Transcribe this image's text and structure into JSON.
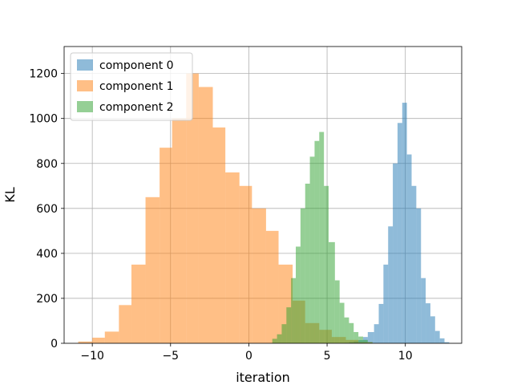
{
  "chart_data": {
    "type": "histogram",
    "title": "",
    "xlabel": "iteration",
    "ylabel": "KL",
    "xlim": [
      -11.8,
      13.6
    ],
    "ylim": [
      0,
      1320
    ],
    "xticks": [
      -10,
      -5,
      0,
      5,
      10
    ],
    "xtick_labels": [
      "−10",
      "−5",
      "0",
      "5",
      "10"
    ],
    "yticks": [
      0,
      200,
      400,
      600,
      800,
      1000,
      1200
    ],
    "ytick_labels": [
      "0",
      "200",
      "400",
      "600",
      "800",
      "1000",
      "1200"
    ],
    "grid": true,
    "legend_position": "upper left",
    "bar_alpha": 0.5,
    "series": [
      {
        "name": "component 0",
        "color": "#1f77b4",
        "bins": [
          [
            6.1,
            6.4,
            2
          ],
          [
            6.4,
            6.7,
            5
          ],
          [
            6.7,
            7.0,
            8
          ],
          [
            7.0,
            7.3,
            14
          ],
          [
            7.3,
            7.6,
            28
          ],
          [
            7.6,
            8.0,
            50
          ],
          [
            8.0,
            8.3,
            85
          ],
          [
            8.3,
            8.6,
            175
          ],
          [
            8.6,
            8.9,
            350
          ],
          [
            8.9,
            9.2,
            520
          ],
          [
            9.2,
            9.5,
            800
          ],
          [
            9.5,
            9.8,
            980
          ],
          [
            9.8,
            10.1,
            1070
          ],
          [
            10.1,
            10.4,
            840
          ],
          [
            10.4,
            10.7,
            700
          ],
          [
            10.7,
            11.0,
            600
          ],
          [
            11.0,
            11.3,
            290
          ],
          [
            11.3,
            11.6,
            178
          ],
          [
            11.6,
            11.9,
            120
          ],
          [
            11.9,
            12.2,
            55
          ],
          [
            12.2,
            12.5,
            22
          ],
          [
            12.5,
            12.8,
            5
          ]
        ]
      },
      {
        "name": "component 1",
        "color": "#ff7f0e",
        "bins": [
          [
            -10.9,
            -10.0,
            8
          ],
          [
            -10.0,
            -9.2,
            25
          ],
          [
            -9.2,
            -8.3,
            52
          ],
          [
            -8.3,
            -7.5,
            170
          ],
          [
            -7.5,
            -6.6,
            350
          ],
          [
            -6.6,
            -5.7,
            650
          ],
          [
            -5.7,
            -4.9,
            870
          ],
          [
            -4.9,
            -4.0,
            1000
          ],
          [
            -4.0,
            -3.2,
            1200
          ],
          [
            -3.2,
            -2.3,
            1140
          ],
          [
            -2.3,
            -1.5,
            960
          ],
          [
            -1.5,
            -0.6,
            760
          ],
          [
            -0.6,
            0.2,
            700
          ],
          [
            0.2,
            1.1,
            600
          ],
          [
            1.1,
            1.9,
            500
          ],
          [
            1.9,
            2.8,
            350
          ],
          [
            2.8,
            3.6,
            190
          ],
          [
            3.6,
            4.5,
            90
          ],
          [
            4.5,
            5.3,
            60
          ],
          [
            5.3,
            6.2,
            28
          ],
          [
            6.2,
            7.0,
            15
          ],
          [
            7.0,
            7.9,
            5
          ]
        ]
      },
      {
        "name": "component 2",
        "color": "#2ca02c",
        "bins": [
          [
            1.5,
            1.8,
            20
          ],
          [
            1.8,
            2.1,
            40
          ],
          [
            2.1,
            2.4,
            85
          ],
          [
            2.4,
            2.7,
            160
          ],
          [
            2.7,
            3.0,
            290
          ],
          [
            3.0,
            3.3,
            430
          ],
          [
            3.3,
            3.6,
            600
          ],
          [
            3.6,
            3.9,
            710
          ],
          [
            3.9,
            4.2,
            830
          ],
          [
            4.2,
            4.5,
            900
          ],
          [
            4.5,
            4.8,
            940
          ],
          [
            4.8,
            5.1,
            700
          ],
          [
            5.1,
            5.5,
            450
          ],
          [
            5.5,
            5.8,
            280
          ],
          [
            5.8,
            6.1,
            180
          ],
          [
            6.1,
            6.4,
            115
          ],
          [
            6.4,
            6.7,
            90
          ],
          [
            6.7,
            7.0,
            50
          ],
          [
            7.0,
            7.3,
            30
          ],
          [
            7.3,
            7.6,
            15
          ],
          [
            7.6,
            7.9,
            5
          ]
        ]
      }
    ]
  }
}
